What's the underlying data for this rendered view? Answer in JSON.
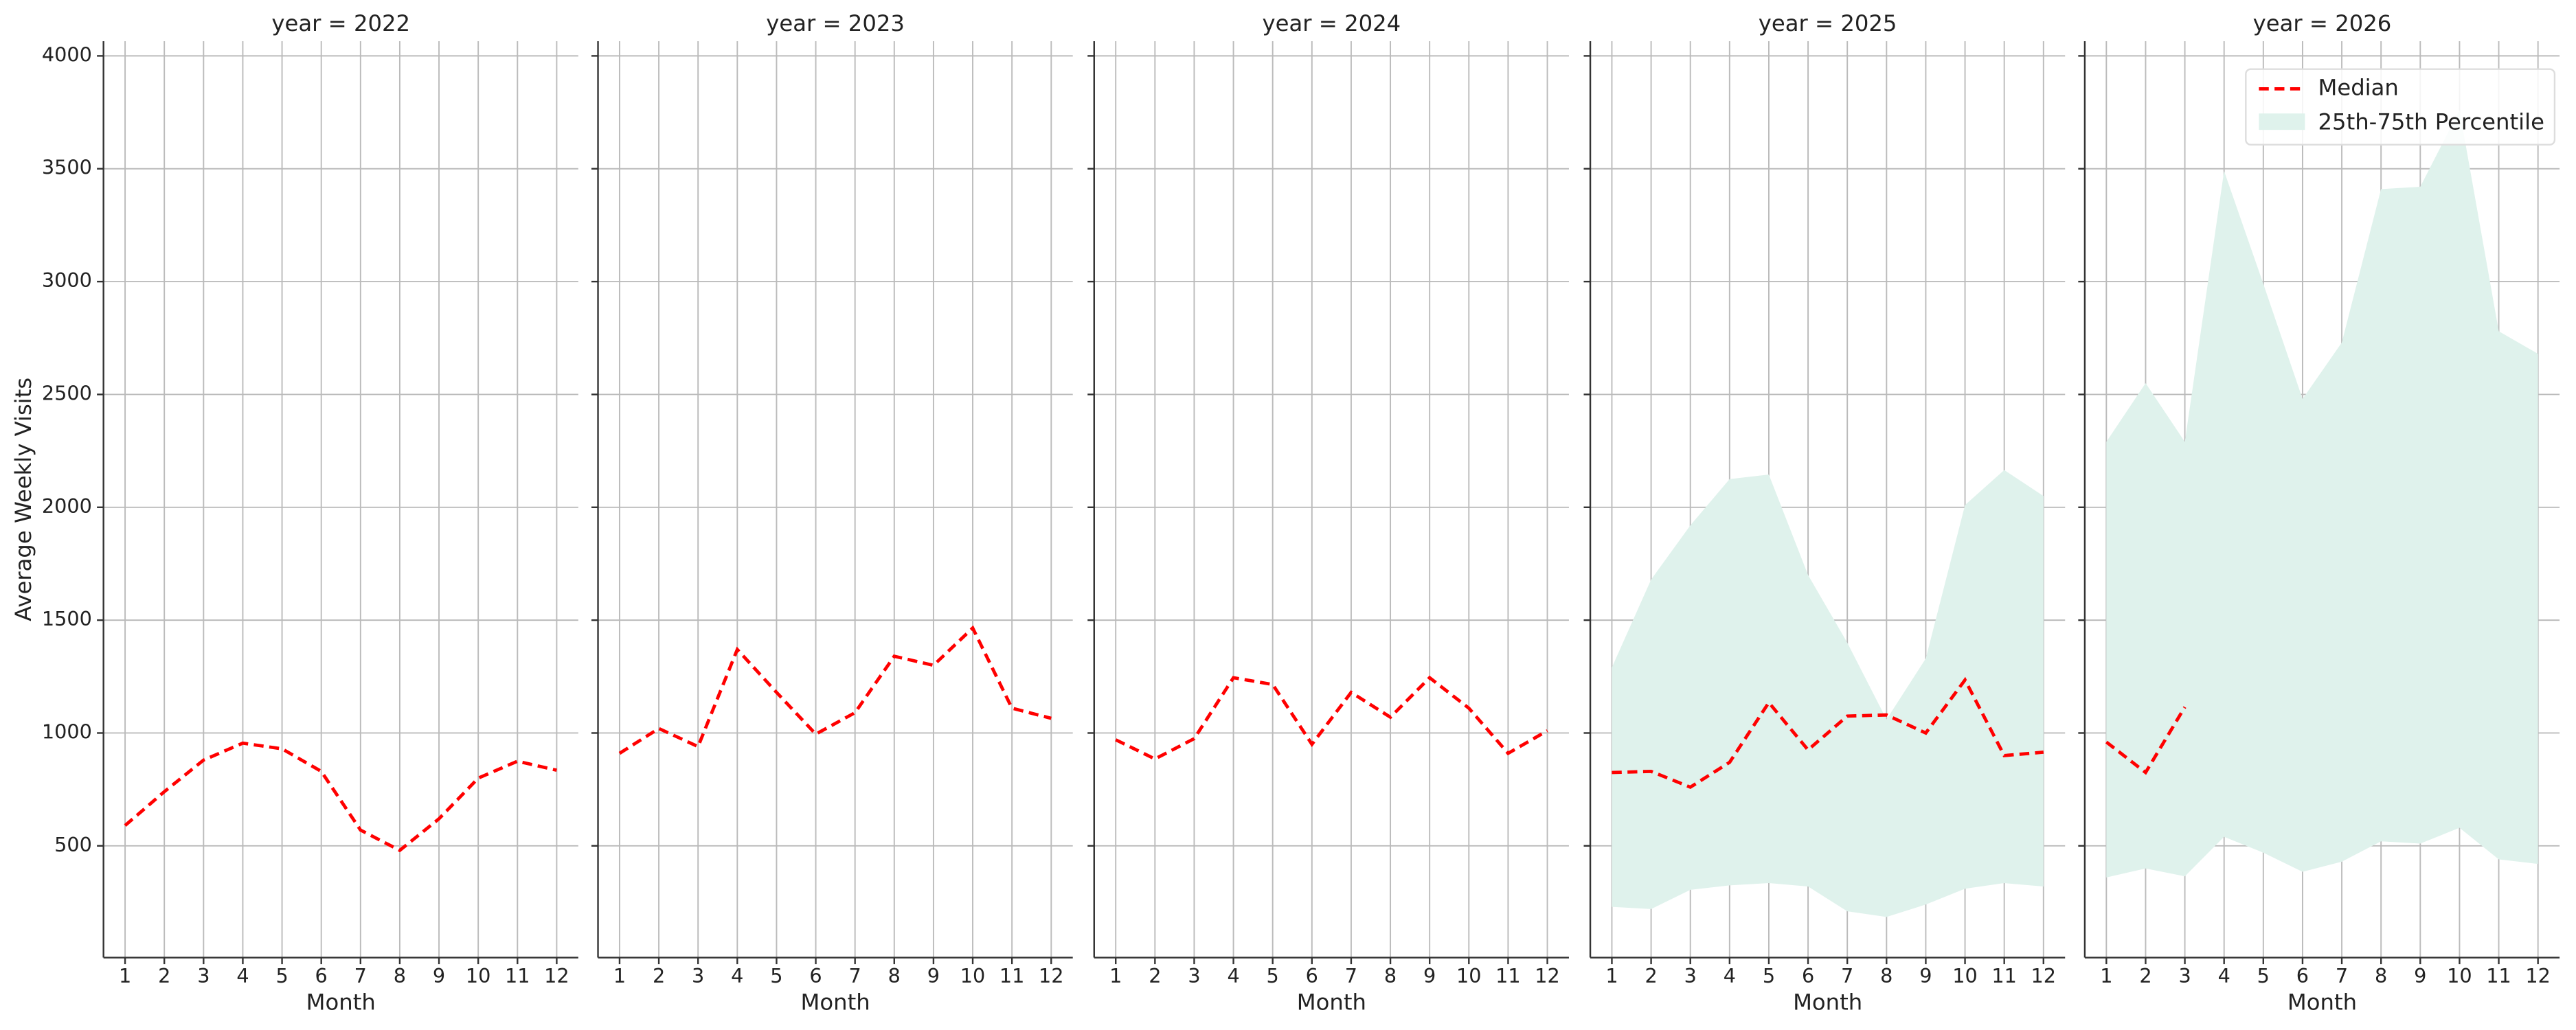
{
  "chart_data": [
    {
      "type": "line",
      "title": "year = 2022",
      "xlabel": "Month",
      "ylabel": "Average Weekly Visits",
      "x": [
        1,
        2,
        3,
        4,
        5,
        6,
        7,
        8,
        9,
        10,
        11,
        12
      ],
      "xlim": [
        0.45,
        12.55
      ],
      "xticks": [
        1,
        2,
        3,
        4,
        5,
        6,
        7,
        8,
        9,
        10,
        11,
        12
      ],
      "ylim": [
        5,
        4065
      ],
      "yticks": [
        500,
        1000,
        1500,
        2000,
        2500,
        3000,
        3500,
        4000
      ],
      "grid": true,
      "series": [
        {
          "name": "Median",
          "color": "#ff0000",
          "values": [
            590,
            740,
            880,
            955,
            930,
            830,
            570,
            480,
            620,
            800,
            875,
            835
          ]
        }
      ]
    },
    {
      "type": "line",
      "title": "year = 2023",
      "xlabel": "Month",
      "x": [
        1,
        2,
        3,
        4,
        5,
        6,
        7,
        8,
        9,
        10,
        11,
        12
      ],
      "xlim": [
        0.45,
        12.55
      ],
      "xticks": [
        1,
        2,
        3,
        4,
        5,
        6,
        7,
        8,
        9,
        10,
        11,
        12
      ],
      "ylim": [
        5,
        4065
      ],
      "yticks": [
        500,
        1000,
        1500,
        2000,
        2500,
        3000,
        3500,
        4000
      ],
      "grid": true,
      "series": [
        {
          "name": "Median",
          "color": "#ff0000",
          "values": [
            910,
            1020,
            940,
            1370,
            1180,
            995,
            1090,
            1340,
            1300,
            1465,
            1110,
            1065
          ]
        }
      ]
    },
    {
      "type": "line",
      "title": "year = 2024",
      "xlabel": "Month",
      "x": [
        1,
        2,
        3,
        4,
        5,
        6,
        7,
        8,
        9,
        10,
        11,
        12
      ],
      "xlim": [
        0.45,
        12.55
      ],
      "xticks": [
        1,
        2,
        3,
        4,
        5,
        6,
        7,
        8,
        9,
        10,
        11,
        12
      ],
      "ylim": [
        5,
        4065
      ],
      "yticks": [
        500,
        1000,
        1500,
        2000,
        2500,
        3000,
        3500,
        4000
      ],
      "grid": true,
      "series": [
        {
          "name": "Median",
          "color": "#ff0000",
          "values": [
            970,
            885,
            975,
            1245,
            1215,
            950,
            1180,
            1070,
            1245,
            1110,
            910,
            1010
          ]
        }
      ]
    },
    {
      "type": "line",
      "title": "year = 2025",
      "xlabel": "Month",
      "x": [
        1,
        2,
        3,
        4,
        5,
        6,
        7,
        8,
        9,
        10,
        11,
        12
      ],
      "xlim": [
        0.45,
        12.55
      ],
      "xticks": [
        1,
        2,
        3,
        4,
        5,
        6,
        7,
        8,
        9,
        10,
        11,
        12
      ],
      "ylim": [
        5,
        4065
      ],
      "yticks": [
        500,
        1000,
        1500,
        2000,
        2500,
        3000,
        3500,
        4000
      ],
      "grid": true,
      "series": [
        {
          "name": "Median",
          "color": "#ff0000",
          "values": [
            825,
            830,
            760,
            870,
            1135,
            925,
            1075,
            1080,
            1000,
            1235,
            900,
            915
          ]
        }
      ],
      "band": {
        "name": "25th-75th Percentile",
        "color": "#dff2ec",
        "lower": [
          230,
          220,
          305,
          325,
          335,
          320,
          210,
          185,
          240,
          310,
          335,
          320
        ],
        "upper": [
          1290,
          1680,
          1920,
          2125,
          2145,
          1700,
          1400,
          1060,
          1330,
          2010,
          2165,
          2050
        ]
      }
    },
    {
      "type": "line",
      "title": "year = 2026",
      "xlabel": "Month",
      "x": [
        1,
        2,
        3,
        4,
        5,
        6,
        7,
        8,
        9,
        10,
        11,
        12
      ],
      "xlim": [
        0.45,
        12.55
      ],
      "xticks": [
        1,
        2,
        3,
        4,
        5,
        6,
        7,
        8,
        9,
        10,
        11,
        12
      ],
      "ylim": [
        5,
        4065
      ],
      "yticks": [
        500,
        1000,
        1500,
        2000,
        2500,
        3000,
        3500,
        4000
      ],
      "grid": true,
      "legend": "upper right",
      "series": [
        {
          "name": "Median",
          "color": "#ff0000",
          "values": [
            960,
            825,
            1115,
            null,
            null,
            null,
            null,
            null,
            null,
            null,
            null,
            null
          ]
        }
      ],
      "band": {
        "name": "25th-75th Percentile",
        "color": "#dff2ec",
        "lower": [
          360,
          400,
          365,
          540,
          470,
          385,
          430,
          520,
          510,
          580,
          440,
          420
        ],
        "upper": [
          2290,
          2550,
          2290,
          3490,
          2990,
          2480,
          2730,
          3410,
          3420,
          3760,
          2780,
          2680
        ]
      }
    }
  ]
}
